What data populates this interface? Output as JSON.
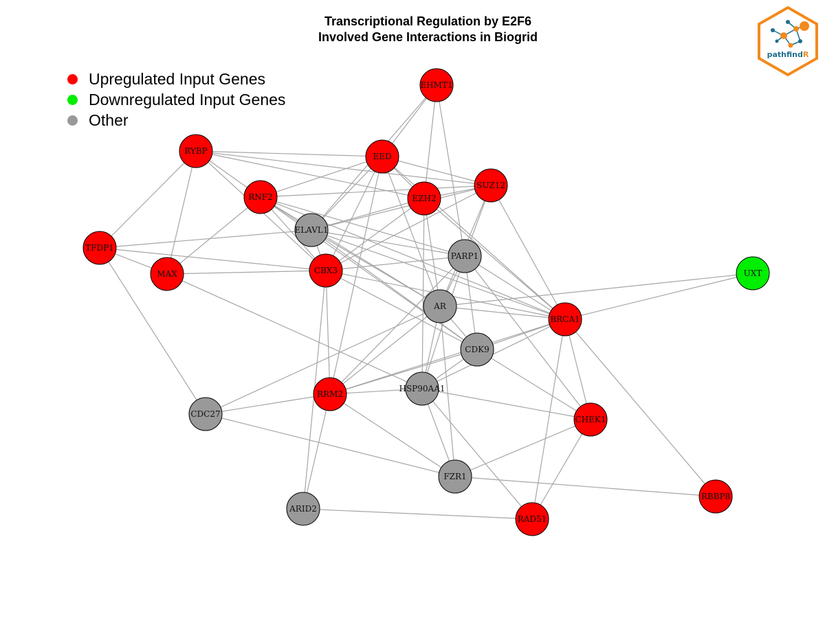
{
  "title": {
    "line1": "Transcriptional Regulation by E2F6",
    "line2": "Involved Gene Interactions in Biogrid"
  },
  "legend": [
    {
      "label": "Upregulated Input Genes",
      "color": "#ff0000"
    },
    {
      "label": "Downregulated Input Genes",
      "color": "#00ee00"
    },
    {
      "label": "Other",
      "color": "#999999"
    }
  ],
  "logo": {
    "text_main": "pathfind",
    "text_accent": "R"
  },
  "colors": {
    "up": "#ff0000",
    "down": "#00ee00",
    "other": "#999999",
    "edge": "#a6a6a6",
    "logo_orange": "#f28a1c",
    "logo_blue": "#1f6e8c"
  },
  "nodes": [
    {
      "id": "EHMT1",
      "status": "up"
    },
    {
      "id": "RYBP",
      "status": "up"
    },
    {
      "id": "EED",
      "status": "up"
    },
    {
      "id": "SUZ12",
      "status": "up"
    },
    {
      "id": "EZH2",
      "status": "up"
    },
    {
      "id": "RNF2",
      "status": "up"
    },
    {
      "id": "ELAVL1",
      "status": "other"
    },
    {
      "id": "TFDP1",
      "status": "up"
    },
    {
      "id": "MAX",
      "status": "up"
    },
    {
      "id": "CBX3",
      "status": "up"
    },
    {
      "id": "PARP1",
      "status": "other"
    },
    {
      "id": "UXT",
      "status": "down"
    },
    {
      "id": "AR",
      "status": "other"
    },
    {
      "id": "BRCA1",
      "status": "up"
    },
    {
      "id": "CDK9",
      "status": "other"
    },
    {
      "id": "HSP90AA1",
      "status": "other"
    },
    {
      "id": "RRM2",
      "status": "up"
    },
    {
      "id": "CDC27",
      "status": "other"
    },
    {
      "id": "CHEK1",
      "status": "up"
    },
    {
      "id": "FZR1",
      "status": "other"
    },
    {
      "id": "RBBP8",
      "status": "up"
    },
    {
      "id": "ARID2",
      "status": "other"
    },
    {
      "id": "RAD51",
      "status": "up"
    }
  ],
  "edges": [
    [
      "EHMT1",
      "EED"
    ],
    [
      "EHMT1",
      "EZH2"
    ],
    [
      "EHMT1",
      "PARP1"
    ],
    [
      "EHMT1",
      "ELAVL1"
    ],
    [
      "RYBP",
      "EED"
    ],
    [
      "RYBP",
      "SUZ12"
    ],
    [
      "RYBP",
      "TFDP1"
    ],
    [
      "RYBP",
      "MAX"
    ],
    [
      "RYBP",
      "CBX3"
    ],
    [
      "RYBP",
      "RNF2"
    ],
    [
      "RYBP",
      "EZH2"
    ],
    [
      "EED",
      "SUZ12"
    ],
    [
      "EED",
      "EZH2"
    ],
    [
      "EED",
      "RNF2"
    ],
    [
      "EED",
      "CBX3"
    ],
    [
      "EED",
      "ELAVL1"
    ],
    [
      "EED",
      "AR"
    ],
    [
      "EED",
      "BRCA1"
    ],
    [
      "EED",
      "RRM2"
    ],
    [
      "SUZ12",
      "EZH2"
    ],
    [
      "SUZ12",
      "ELAVL1"
    ],
    [
      "SUZ12",
      "CBX3"
    ],
    [
      "SUZ12",
      "PARP1"
    ],
    [
      "SUZ12",
      "AR"
    ],
    [
      "SUZ12",
      "BRCA1"
    ],
    [
      "SUZ12",
      "RNF2"
    ],
    [
      "EZH2",
      "ELAVL1"
    ],
    [
      "EZH2",
      "HSP90AA1"
    ],
    [
      "EZH2",
      "AR"
    ],
    [
      "EZH2",
      "BRCA1"
    ],
    [
      "EZH2",
      "CBX3"
    ],
    [
      "RNF2",
      "MAX"
    ],
    [
      "RNF2",
      "CBX3"
    ],
    [
      "RNF2",
      "PARP1"
    ],
    [
      "RNF2",
      "AR"
    ],
    [
      "RNF2",
      "CDK9"
    ],
    [
      "RNF2",
      "BRCA1"
    ],
    [
      "RNF2",
      "ELAVL1"
    ],
    [
      "ELAVL1",
      "TFDP1"
    ],
    [
      "ELAVL1",
      "PARP1"
    ],
    [
      "ELAVL1",
      "AR"
    ],
    [
      "ELAVL1",
      "CDK9"
    ],
    [
      "ELAVL1",
      "BRCA1"
    ],
    [
      "ELAVL1",
      "CBX3"
    ],
    [
      "TFDP1",
      "MAX"
    ],
    [
      "TFDP1",
      "CBX3"
    ],
    [
      "TFDP1",
      "CDC27"
    ],
    [
      "MAX",
      "CBX3"
    ],
    [
      "MAX",
      "HSP90AA1"
    ],
    [
      "CBX3",
      "PARP1"
    ],
    [
      "CBX3",
      "RRM2"
    ],
    [
      "CBX3",
      "ARID2"
    ],
    [
      "CBX3",
      "CDK9"
    ],
    [
      "CBX3",
      "BRCA1"
    ],
    [
      "PARP1",
      "AR"
    ],
    [
      "PARP1",
      "CDK9"
    ],
    [
      "PARP1",
      "BRCA1"
    ],
    [
      "PARP1",
      "CHEK1"
    ],
    [
      "PARP1",
      "HSP90AA1"
    ],
    [
      "PARP1",
      "RRM2"
    ],
    [
      "UXT",
      "AR"
    ],
    [
      "UXT",
      "BRCA1"
    ],
    [
      "AR",
      "BRCA1"
    ],
    [
      "AR",
      "CDK9"
    ],
    [
      "AR",
      "HSP90AA1"
    ],
    [
      "AR",
      "RRM2"
    ],
    [
      "AR",
      "FZR1"
    ],
    [
      "AR",
      "CDC27"
    ],
    [
      "BRCA1",
      "CDK9"
    ],
    [
      "BRCA1",
      "HSP90AA1"
    ],
    [
      "BRCA1",
      "CHEK1"
    ],
    [
      "BRCA1",
      "RAD51"
    ],
    [
      "BRCA1",
      "RBBP8"
    ],
    [
      "BRCA1",
      "RRM2"
    ],
    [
      "CDK9",
      "HSP90AA1"
    ],
    [
      "CDK9",
      "CHEK1"
    ],
    [
      "CDK9",
      "RRM2"
    ],
    [
      "HSP90AA1",
      "RRM2"
    ],
    [
      "HSP90AA1",
      "CHEK1"
    ],
    [
      "HSP90AA1",
      "FZR1"
    ],
    [
      "HSP90AA1",
      "RAD51"
    ],
    [
      "RRM2",
      "CDC27"
    ],
    [
      "RRM2",
      "ARID2"
    ],
    [
      "RRM2",
      "FZR1"
    ],
    [
      "CDC27",
      "FZR1"
    ],
    [
      "CHEK1",
      "FZR1"
    ],
    [
      "CHEK1",
      "RAD51"
    ],
    [
      "FZR1",
      "RBBP8"
    ],
    [
      "ARID2",
      "RAD51"
    ]
  ]
}
